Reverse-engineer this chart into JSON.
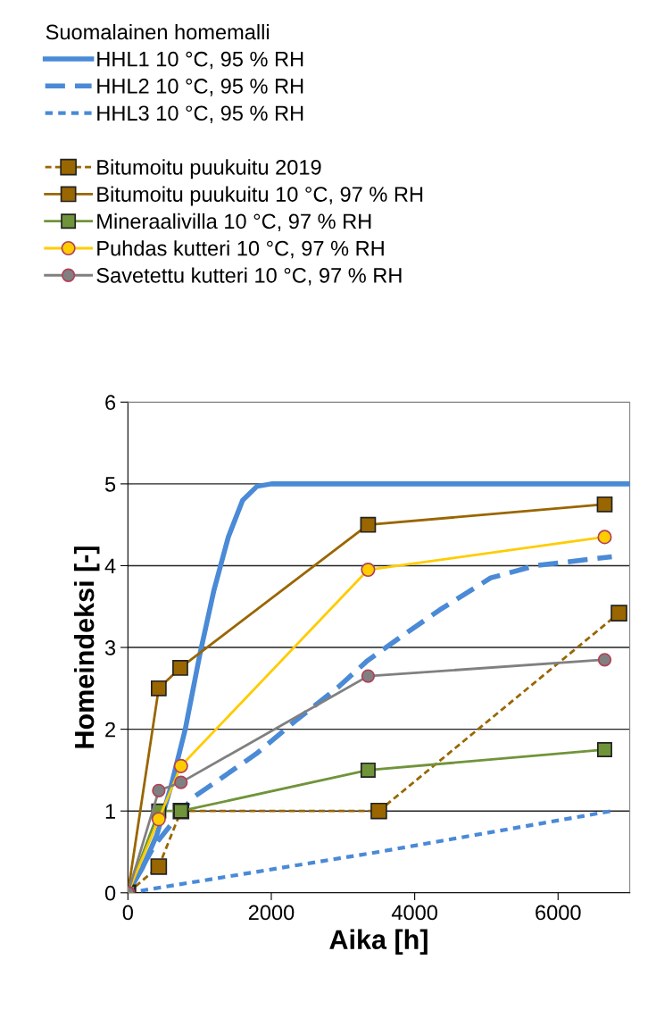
{
  "chart_data": {
    "type": "line",
    "xlabel": "Aika [h]",
    "ylabel": "Homeindeksi [-]",
    "legend_title": "Suomalainen homemalli",
    "xlim": [
      0,
      7000
    ],
    "xticks": [
      0,
      2000,
      4000,
      6000
    ],
    "ylim": [
      0,
      6
    ],
    "yticks": [
      0,
      1,
      2,
      3,
      4,
      5,
      6
    ],
    "grid": "y",
    "legend": "top",
    "series": [
      {
        "name": "HHL1 10 °C, 95 % RH",
        "color": "#4a8ad6",
        "line_style": "solid",
        "marker": "none",
        "x": [
          0,
          200,
          400,
          600,
          800,
          1000,
          1200,
          1400,
          1600,
          1800,
          2000,
          7000
        ],
        "values": [
          0,
          0.3,
          0.7,
          1.3,
          2.0,
          2.9,
          3.7,
          4.35,
          4.8,
          4.97,
          5,
          5
        ]
      },
      {
        "name": "HHL2 10 °C, 95 % RH",
        "color": "#4a8ad6",
        "line_style": "dashed",
        "marker": "none",
        "x": [
          0,
          370,
          900,
          1250,
          1790,
          2320,
          2940,
          3330,
          3760,
          4350,
          5060,
          5680,
          6750
        ],
        "values": [
          0,
          0.58,
          1.16,
          1.37,
          1.7,
          2.09,
          2.52,
          2.83,
          3.1,
          3.46,
          3.85,
          4.0,
          4.11
        ]
      },
      {
        "name": "HHL3 10 °C, 95 % RH",
        "color": "#4a8ad6",
        "line_style": "dotted",
        "marker": "none",
        "x": [
          0,
          3500,
          6750
        ],
        "values": [
          0,
          0.5,
          1.0
        ]
      },
      {
        "name": "Bitumoitu puukuitu 2019",
        "color": "#996600",
        "line_style": "dashed",
        "marker": "square",
        "x": [
          0,
          430,
          740,
          3500,
          6850
        ],
        "values": [
          0,
          0.32,
          1,
          1,
          3.42
        ]
      },
      {
        "name": "Bitumoitu puukuitu 10 °C, 97 % RH",
        "color": "#996600",
        "line_style": "solid",
        "marker": "square",
        "x": [
          0,
          430,
          730,
          3350,
          6650
        ],
        "values": [
          0,
          2.5,
          2.75,
          4.5,
          4.75
        ]
      },
      {
        "name": "Mineraalivilla 10 °C, 97 % RH",
        "color": "#70943a",
        "line_style": "solid",
        "marker": "square",
        "x": [
          0,
          430,
          740,
          3350,
          6650
        ],
        "values": [
          0,
          1.0,
          1.0,
          1.5,
          1.75
        ]
      },
      {
        "name": "Puhdas kutteri 10 °C, 97 % RH",
        "color": "#ffcc00",
        "line_style": "solid",
        "marker": "circle",
        "x": [
          0,
          430,
          740,
          3350,
          6650
        ],
        "values": [
          0,
          0.9,
          1.55,
          3.95,
          4.35
        ]
      },
      {
        "name": "Savetettu kutteri 10 °C, 97 % RH",
        "color": "#808080",
        "line_style": "solid",
        "marker": "circle",
        "x": [
          0,
          430,
          740,
          3350,
          6650
        ],
        "values": [
          0,
          1.25,
          1.35,
          2.65,
          2.85
        ]
      }
    ]
  }
}
